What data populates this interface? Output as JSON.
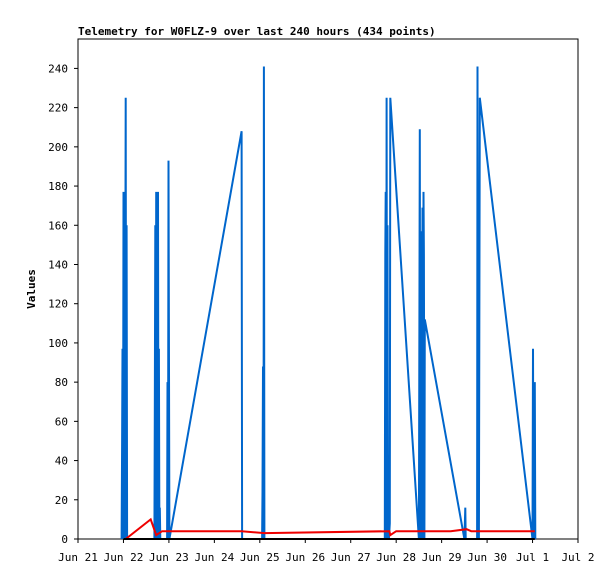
{
  "chart_data": {
    "type": "line",
    "title": "Telemetry for W0FLZ-9 over last 240 hours (434 points)",
    "xlabel": "",
    "ylabel": "Values",
    "ylim": [
      0,
      255
    ],
    "xlim": [
      0,
      11
    ],
    "grid": false,
    "legend": "none",
    "x_ticks": [
      {
        "x": 0,
        "label": "Jun 21"
      },
      {
        "x": 1,
        "label": "Jun 22"
      },
      {
        "x": 2,
        "label": "Jun 23"
      },
      {
        "x": 3,
        "label": "Jun 24"
      },
      {
        "x": 4,
        "label": "Jun 25"
      },
      {
        "x": 5,
        "label": "Jun 26"
      },
      {
        "x": 6,
        "label": "Jun 27"
      },
      {
        "x": 7,
        "label": "Jun 28"
      },
      {
        "x": 8,
        "label": "Jun 29"
      },
      {
        "x": 9,
        "label": "Jun 30"
      },
      {
        "x": 10,
        "label": "Jul 1"
      },
      {
        "x": 11,
        "label": "Jul 2"
      }
    ],
    "y_ticks": [
      0,
      20,
      40,
      60,
      80,
      100,
      120,
      140,
      160,
      180,
      200,
      220,
      240
    ],
    "colors": {
      "blue_series": "#0066cc",
      "red_series": "#ee0000",
      "black_series": "#000000"
    },
    "series": [
      {
        "color": "#0066cc",
        "points": [
          [
            0.96,
            0
          ],
          [
            0.97,
            48
          ],
          [
            0.98,
            97
          ],
          [
            0.99,
            0
          ],
          [
            1.0,
            177
          ],
          [
            1.01,
            0
          ],
          [
            1.02,
            88
          ],
          [
            1.03,
            0
          ],
          [
            1.05,
            225
          ],
          [
            1.06,
            0
          ],
          [
            1.07,
            160
          ],
          [
            1.08,
            0
          ],
          [
            1.68,
            0
          ],
          [
            1.69,
            64
          ],
          [
            1.7,
            160
          ],
          [
            1.71,
            0
          ],
          [
            1.72,
            177
          ],
          [
            1.73,
            0
          ],
          [
            1.75,
            48
          ],
          [
            1.76,
            177
          ],
          [
            1.77,
            0
          ],
          [
            1.78,
            97
          ],
          [
            1.79,
            0
          ],
          [
            1.8,
            16
          ],
          [
            1.81,
            0
          ],
          [
            1.96,
            0
          ],
          [
            1.97,
            80
          ],
          [
            1.98,
            0
          ],
          [
            1.99,
            193
          ],
          [
            2.01,
            0
          ],
          [
            3.6,
            208
          ],
          [
            3.61,
            0
          ],
          [
            4.05,
            0
          ],
          [
            4.06,
            24
          ],
          [
            4.07,
            88
          ],
          [
            4.08,
            0
          ],
          [
            4.09,
            241
          ],
          [
            4.1,
            0
          ],
          [
            6.75,
            0
          ],
          [
            6.76,
            145
          ],
          [
            6.77,
            177
          ],
          [
            6.78,
            0
          ],
          [
            6.79,
            225
          ],
          [
            6.8,
            0
          ],
          [
            6.81,
            160
          ],
          [
            6.82,
            0
          ],
          [
            6.83,
            24
          ],
          [
            6.84,
            0
          ],
          [
            6.86,
            8
          ],
          [
            6.87,
            225
          ],
          [
            7.5,
            0
          ],
          [
            7.51,
            112
          ],
          [
            7.52,
            209
          ],
          [
            7.53,
            0
          ],
          [
            7.54,
            8
          ],
          [
            7.55,
            157
          ],
          [
            7.56,
            0
          ],
          [
            7.57,
            80
          ],
          [
            7.58,
            169
          ],
          [
            7.59,
            0
          ],
          [
            7.6,
            177
          ],
          [
            7.61,
            145
          ],
          [
            7.62,
            0
          ],
          [
            7.63,
            112
          ],
          [
            8.5,
            0
          ],
          [
            8.52,
            16
          ],
          [
            8.53,
            0
          ],
          [
            8.78,
            0
          ],
          [
            8.79,
            241
          ],
          [
            8.8,
            0
          ],
          [
            8.81,
            128
          ],
          [
            8.82,
            0
          ],
          [
            8.84,
            225
          ],
          [
            10.0,
            0
          ],
          [
            10.01,
            97
          ],
          [
            10.02,
            0
          ],
          [
            10.03,
            64
          ],
          [
            10.04,
            0
          ],
          [
            10.05,
            80
          ],
          [
            10.06,
            0
          ]
        ]
      },
      {
        "color": "#ee0000",
        "points": [
          [
            1.05,
            0
          ],
          [
            1.6,
            10
          ],
          [
            1.72,
            2
          ],
          [
            1.85,
            4
          ],
          [
            2.0,
            4
          ],
          [
            3.6,
            4
          ],
          [
            4.1,
            3
          ],
          [
            6.85,
            4
          ],
          [
            6.87,
            2
          ],
          [
            7.0,
            4
          ],
          [
            8.2,
            4
          ],
          [
            8.55,
            5
          ],
          [
            8.65,
            4
          ],
          [
            10.05,
            4
          ]
        ]
      },
      {
        "color": "#000000",
        "points": [
          [
            1.0,
            0
          ],
          [
            10.05,
            0
          ]
        ]
      }
    ]
  }
}
